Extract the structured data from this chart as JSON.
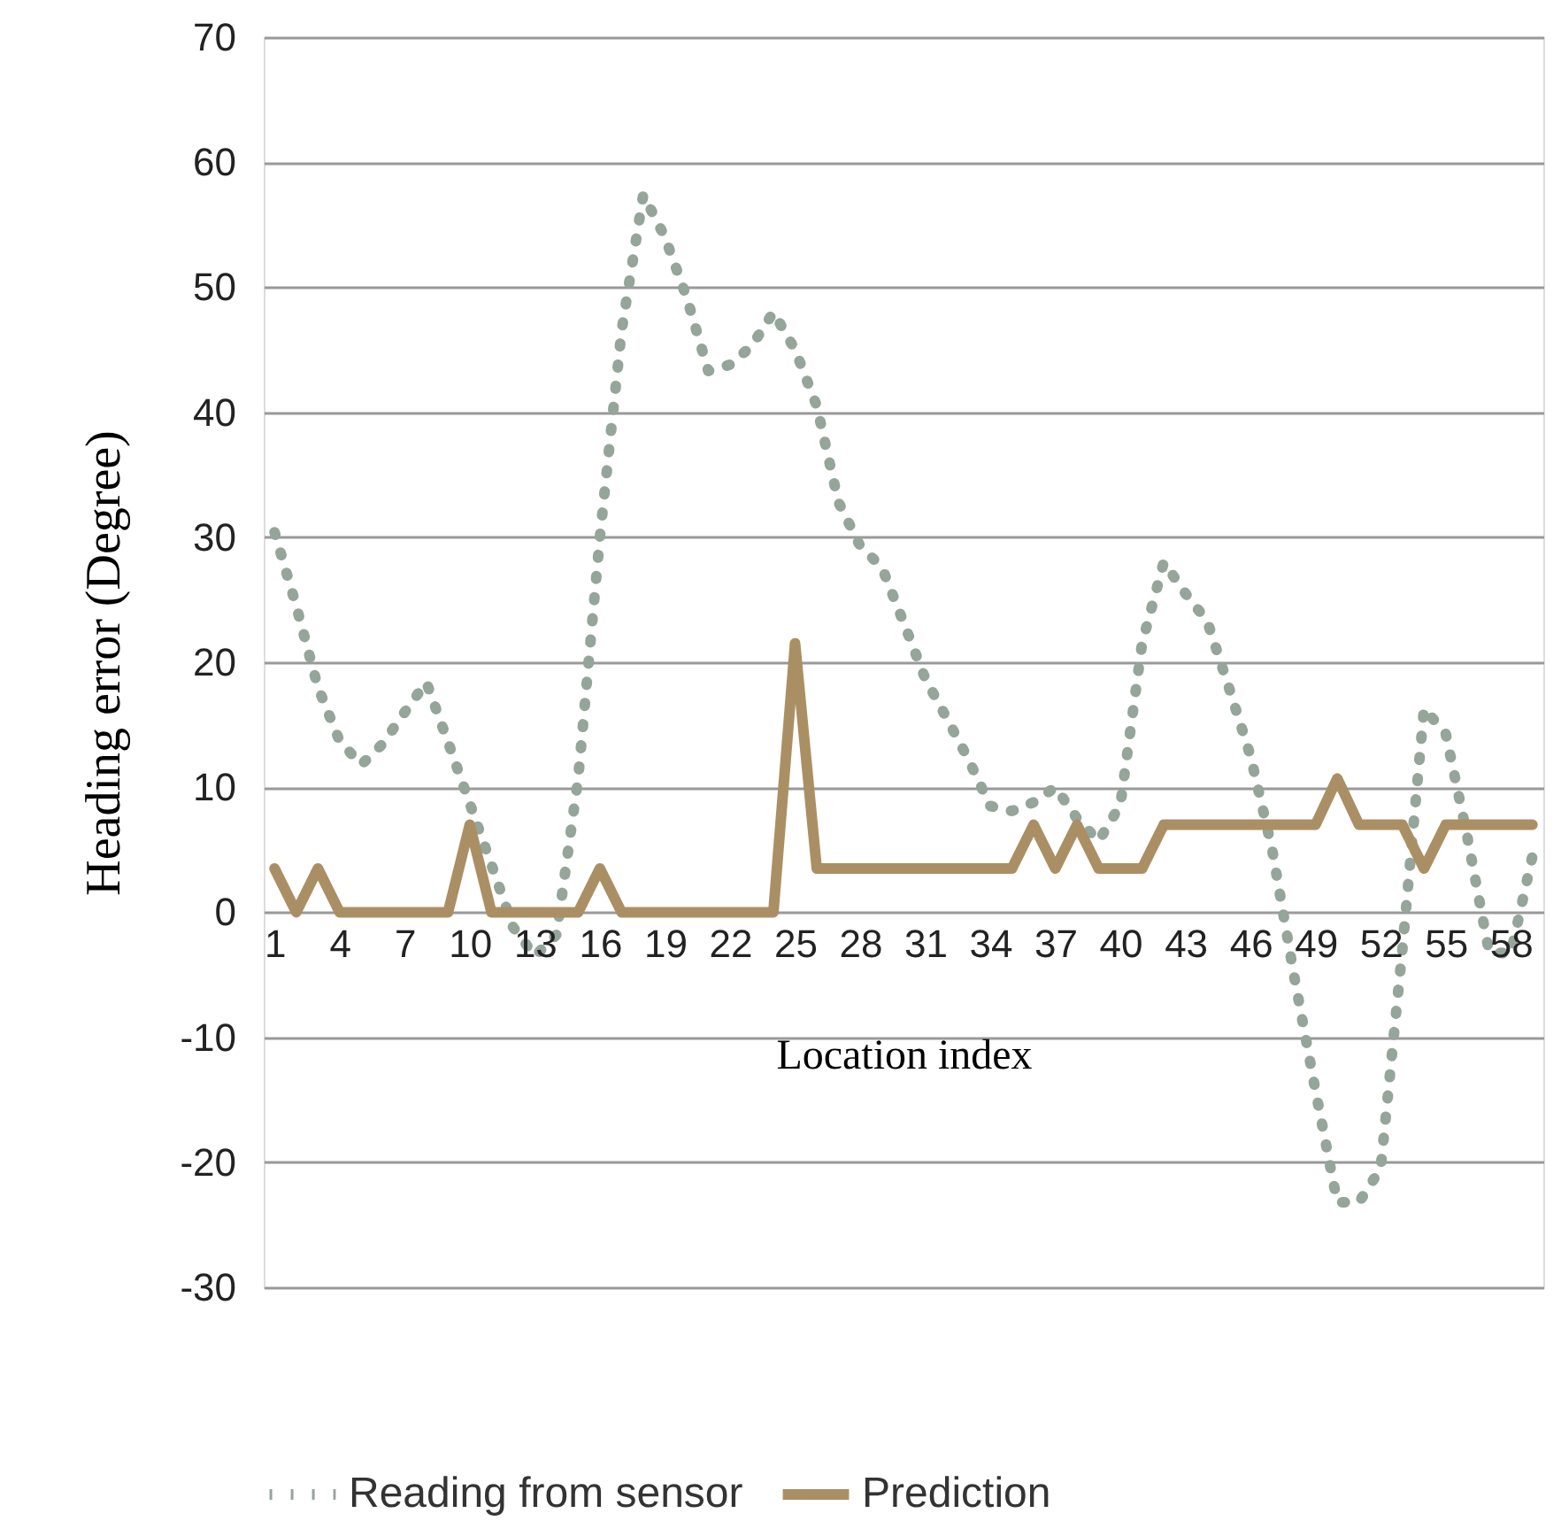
{
  "chart_data": {
    "type": "line",
    "xlabel": "Location index",
    "ylabel": "Heading error (Degree)",
    "categories": [
      "1",
      null,
      null,
      "4",
      null,
      null,
      "7",
      null,
      null,
      "10",
      null,
      null,
      "13",
      null,
      null,
      "16",
      null,
      null,
      "19",
      null,
      null,
      "22",
      null,
      null,
      "25",
      null,
      null,
      "28",
      null,
      null,
      "31",
      null,
      null,
      "34",
      null,
      null,
      "37",
      null,
      null,
      "40",
      null,
      null,
      "43",
      null,
      null,
      "46",
      null,
      null,
      "49",
      null,
      null,
      "52",
      null,
      null,
      "55",
      null,
      null,
      "58",
      null
    ],
    "series": [
      {
        "name": "Reading from sensor",
        "color": "#94a59a",
        "line_style": "dotted",
        "values": [
          30.4,
          24.5,
          18,
          13.7,
          11.8,
          13.5,
          16,
          18.4,
          13.6,
          8.7,
          3.8,
          -1.2,
          -3.5,
          -1.8,
          10.7,
          30,
          46.5,
          57.4,
          54,
          49.2,
          43.3,
          43.8,
          45.3,
          48,
          45,
          40.5,
          32.8,
          29.3,
          27.6,
          23.2,
          18.7,
          15.5,
          12.2,
          8.5,
          8.1,
          8.8,
          10,
          7.5,
          5.7,
          8.6,
          21.5,
          28,
          25.5,
          23.3,
          18,
          12.5,
          5,
          -5,
          -14.3,
          -23.2,
          -23.2,
          -20.5,
          -3,
          16.3,
          14.3,
          6,
          -3.2,
          -3.3,
          4.5
        ]
      },
      {
        "name": "Prediction",
        "color": "#ab8f64",
        "line_style": "solid",
        "values": [
          3.5,
          0,
          3.5,
          0,
          0,
          0,
          0,
          0,
          0,
          7,
          0,
          0,
          0,
          0,
          0,
          3.5,
          0,
          0,
          0,
          0,
          0,
          0,
          0,
          0,
          21.5,
          3.5,
          3.5,
          3.5,
          3.5,
          3.5,
          3.5,
          3.5,
          3.5,
          3.5,
          3.5,
          7,
          3.5,
          7,
          3.5,
          3.5,
          3.5,
          7,
          7,
          7,
          7,
          7,
          7,
          7,
          7,
          10.7,
          7,
          7,
          7,
          3.5,
          7,
          7,
          7,
          7,
          7
        ]
      }
    ],
    "ylim": [
      -30,
      70
    ],
    "yticks": [
      -30,
      -20,
      -10,
      0,
      10,
      20,
      30,
      40,
      50,
      60,
      70
    ],
    "grid": "y",
    "legend": "bottom"
  }
}
